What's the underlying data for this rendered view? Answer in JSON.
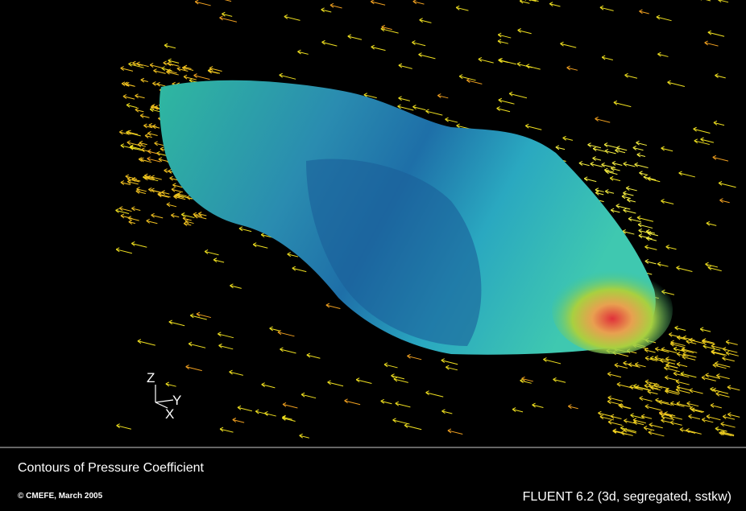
{
  "caption": "Contours of Pressure Coefficient",
  "credit": "© CMEFE, March 2005",
  "solver": "FLUENT 6.2 (3d, segregated, sstkw)",
  "axes": {
    "z": "Z",
    "y": "Y",
    "x": "X"
  }
}
